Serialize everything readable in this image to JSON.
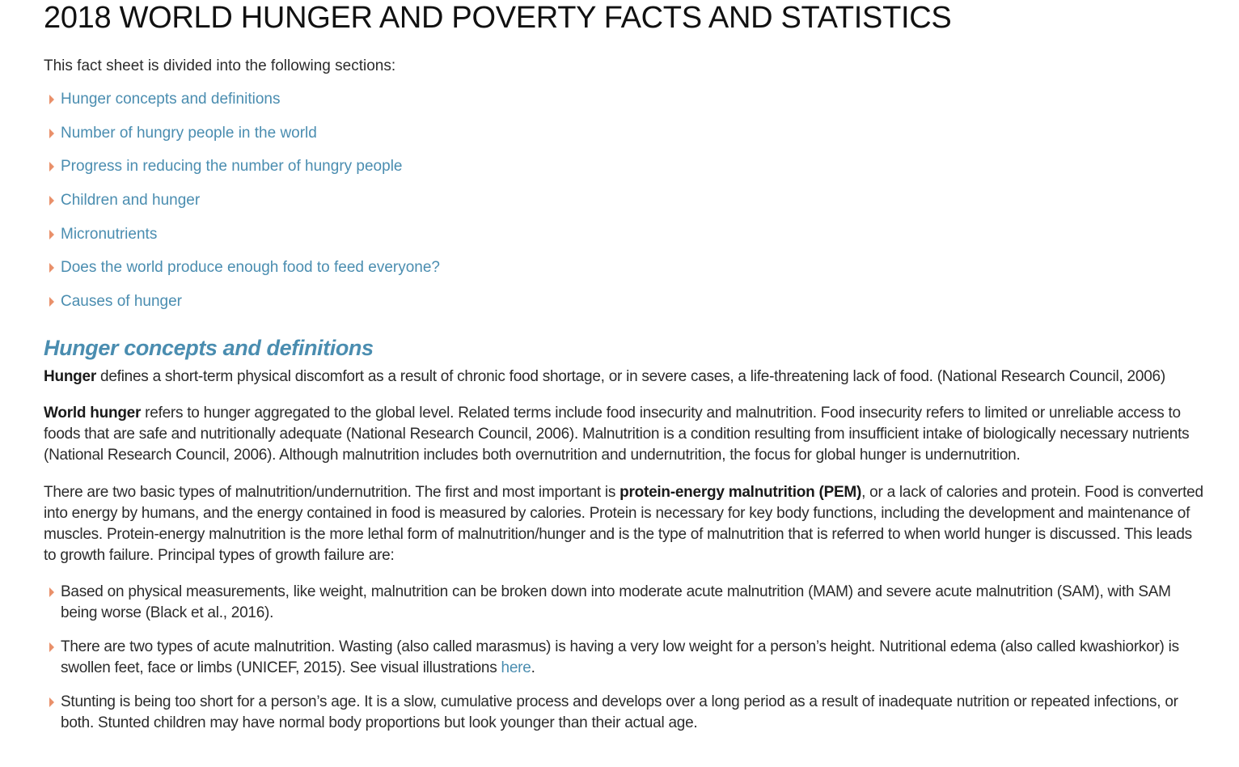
{
  "page": {
    "title": "2018 WORLD HUNGER AND POVERTY FACTS AND STATISTICS",
    "intro": "This fact sheet is divided into the following sections:"
  },
  "toc": [
    {
      "label": "Hunger concepts and definitions"
    },
    {
      "label": "Number of hungry people in the world"
    },
    {
      "label": "Progress in reducing the number of hungry people"
    },
    {
      "label": "Children and hunger"
    },
    {
      "label": "Micronutrients"
    },
    {
      "label": "Does the world produce enough food to feed everyone?"
    },
    {
      "label": "Causes of hunger"
    }
  ],
  "section": {
    "title": "Hunger concepts and definitions",
    "p1": {
      "term": "Hunger",
      "text": " defines a short-term physical discomfort as a result of chronic food shortage, or in severe cases, a life-threatening lack of food. (National Research Council, 2006)"
    },
    "p2": {
      "term": "World hunger",
      "text": " refers to hunger aggregated to the global level. Related terms include food insecurity and malnutrition. Food insecurity refers to limited or unreliable access to foods that are safe and nutritionally adequate (National Research Council, 2006). Malnutrition is a condition resulting from insufficient intake of biologically necessary nutrients (National Research Council, 2006). Although malnutrition includes both overnutrition and undernutrition, the focus for global hunger is undernutrition."
    },
    "p3": {
      "lead": "There are two basic types of malnutrition/undernutrition. The first and most important is ",
      "term": "protein-energy malnutrition (PEM)",
      "text": ", or a lack of calories and protein. Food is converted into energy by humans, and the energy contained in food is measured by calories. Protein is necessary for key body functions, including the development and maintenance of muscles. Protein-energy malnutrition is the more lethal form of malnutrition/hunger and is the type of malnutrition that is referred to when world hunger is discussed. This leads to growth failure. Principal types of growth failure are:"
    },
    "bullets": [
      {
        "text": "Based on physical measurements, like weight, malnutrition can be broken down into moderate acute malnutrition (MAM) and severe acute malnutrition (SAM), with SAM being worse (Black et al., 2016)."
      },
      {
        "text": "There are two types of acute malnutrition. Wasting (also called marasmus) is having a very low weight for a person’s height. Nutritional edema (also called kwashiorkor) is swollen feet, face or limbs (UNICEF, 2015). See visual illustrations ",
        "link": "here",
        "after": "."
      },
      {
        "text": "Stunting is being too short for a person’s age. It is a slow, cumulative process and develops over a long period as a result of inadequate nutrition or repeated infections, or both. Stunted children may have normal body proportions but look younger than their actual age."
      }
    ]
  },
  "colors": {
    "link": "#4a8db0",
    "bullet_arrow": "#e9906a",
    "text": "#2b2b2b"
  }
}
